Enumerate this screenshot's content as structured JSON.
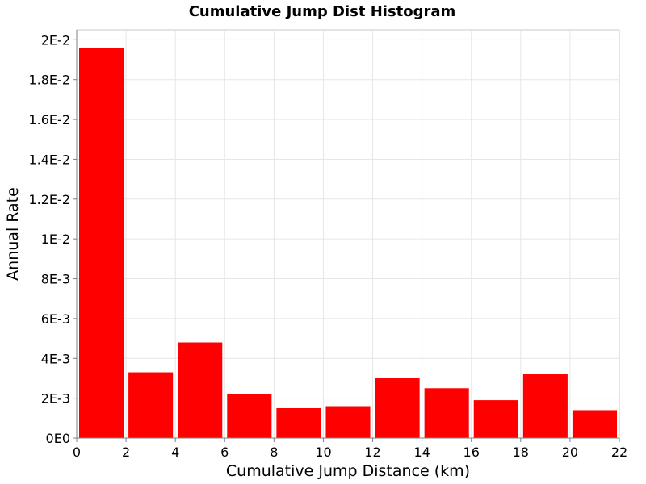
{
  "chart_data": {
    "type": "bar",
    "title": "Cumulative Jump Dist Histogram",
    "xlabel": "Cumulative Jump Distance (km)",
    "ylabel": "Annual Rate",
    "xlim": [
      0,
      22
    ],
    "ylim": [
      0,
      0.0205
    ],
    "x_ticks": [
      0,
      2,
      4,
      6,
      8,
      10,
      12,
      14,
      16,
      18,
      20,
      22
    ],
    "x_tick_labels": [
      "0",
      "2",
      "4",
      "6",
      "8",
      "10",
      "12",
      "14",
      "16",
      "18",
      "20",
      "22"
    ],
    "y_ticks": [
      0,
      0.002,
      0.004,
      0.006,
      0.008,
      0.01,
      0.012,
      0.014,
      0.016,
      0.018,
      0.02
    ],
    "y_tick_labels": [
      "0E0",
      "2E-3",
      "4E-3",
      "6E-3",
      "8E-3",
      "1E-2",
      "1.2E-2",
      "1.4E-2",
      "1.6E-2",
      "1.8E-2",
      "2E-2"
    ],
    "bin_width": 2,
    "bins": [
      {
        "x": 1,
        "value": 0.0196
      },
      {
        "x": 3,
        "value": 0.0033
      },
      {
        "x": 5,
        "value": 0.0048
      },
      {
        "x": 7,
        "value": 0.0022
      },
      {
        "x": 9,
        "value": 0.0015
      },
      {
        "x": 11,
        "value": 0.0016
      },
      {
        "x": 13,
        "value": 0.003
      },
      {
        "x": 15,
        "value": 0.0025
      },
      {
        "x": 17,
        "value": 0.0019
      },
      {
        "x": 19,
        "value": 0.0032
      },
      {
        "x": 21,
        "value": 0.0014
      }
    ],
    "bar_color": "#ff0000",
    "grid": true
  }
}
